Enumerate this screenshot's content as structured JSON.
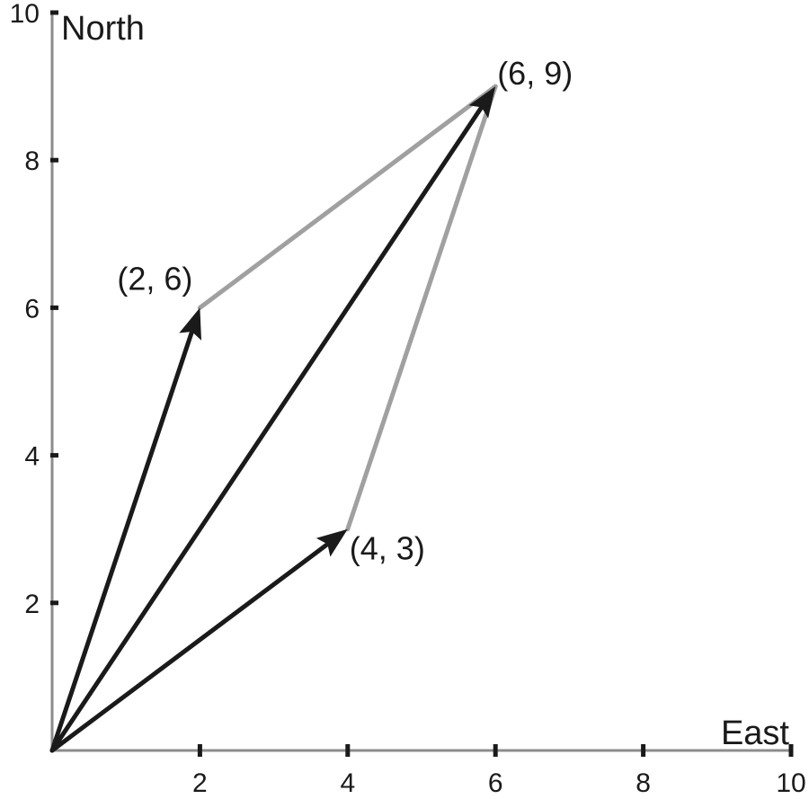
{
  "diagram": {
    "x_axis_label": "East",
    "y_axis_label": "North",
    "x_range": [
      0,
      10
    ],
    "y_range": [
      0,
      10
    ],
    "x_ticks": [
      "2",
      "4",
      "6",
      "8",
      "10"
    ],
    "y_ticks": [
      "2",
      "4",
      "6",
      "8",
      "10"
    ],
    "colors": {
      "axis": "#8c8c8c",
      "tick": "#1a1a1a",
      "vector": "#1a1a1a",
      "construction": "#a0a0a0"
    },
    "points": {
      "a": {
        "x": 2,
        "y": 6,
        "label": "(2, 6)"
      },
      "b": {
        "x": 4,
        "y": 3,
        "label": "(4, 3)"
      },
      "sum": {
        "x": 6,
        "y": 9,
        "label": "(6, 9)"
      }
    }
  }
}
